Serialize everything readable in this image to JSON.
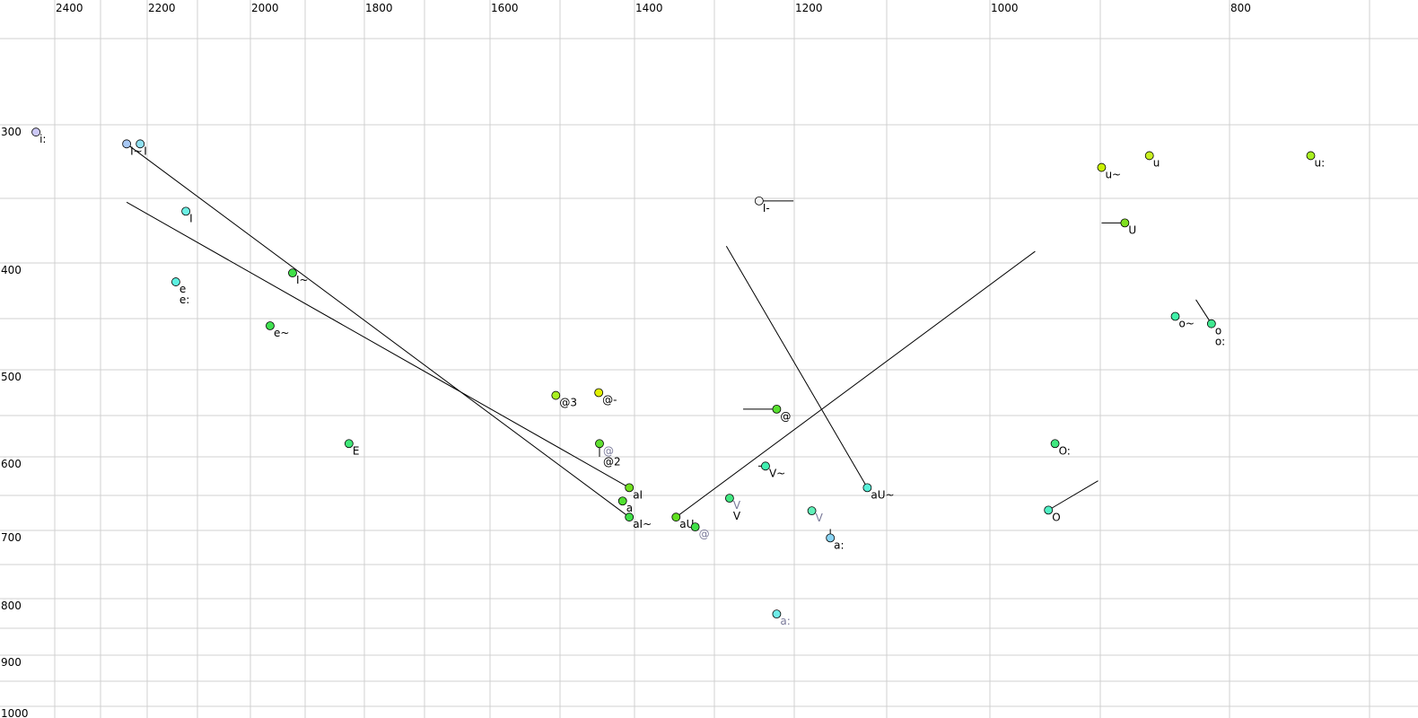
{
  "chart_data": {
    "type": "scatter",
    "title": "",
    "xlabel": "",
    "ylabel": "",
    "x_axis": {
      "reversed": true,
      "position": "top",
      "ticks": [
        2400,
        2200,
        2000,
        1800,
        1600,
        1400,
        1200,
        1000,
        800
      ],
      "grid_step": 100
    },
    "y_axis": {
      "reversed": true,
      "position": "left",
      "ticks": [
        300,
        400,
        500,
        600,
        700,
        800,
        900,
        1000
      ],
      "grid_step": 50
    },
    "grid": true,
    "colors": {
      "grid": "#d0d0d0",
      "muted_label": "#7a7a9a",
      "trajectory": "#000000"
    },
    "points": [
      {
        "labels": [
          "i:"
        ],
        "f2": 2441,
        "f1": 305,
        "color": "#ccc8f6"
      },
      {
        "labels": [
          "I~"
        ],
        "f2": 2244,
        "f1": 313,
        "color": "#a8c8f4"
      },
      {
        "labels": [
          "I"
        ],
        "f2": 2215,
        "f1": 313,
        "color": "#90e0f0"
      },
      {
        "labels": [
          "I"
        ],
        "f2": 2123,
        "f1": 360,
        "color": "#6cf0e4"
      },
      {
        "labels": [
          "e",
          "e:"
        ],
        "f2": 2143,
        "f1": 417,
        "color": "#5cf0e0"
      },
      {
        "labels": [
          "I~"
        ],
        "f2": 1923,
        "f1": 409,
        "color": "#40e048"
      },
      {
        "labels": [
          "e~"
        ],
        "f2": 1964,
        "f1": 457,
        "color": "#40e050"
      },
      {
        "labels": [
          "E"
        ],
        "f2": 1826,
        "f1": 584,
        "color": "#40e878"
      },
      {
        "labels": [
          "@3"
        ],
        "f2": 1506,
        "f1": 528,
        "color": "#a8f020"
      },
      {
        "labels": [
          "@-"
        ],
        "f2": 1448,
        "f1": 525,
        "color": "#e0f000"
      },
      {
        "labels": [
          "@",
          "@2"
        ],
        "muted": [
          true,
          false
        ],
        "f2": 1447,
        "f1": 584,
        "color": "#60e030"
      },
      {
        "labels": [
          "aI"
        ],
        "f2": 1407,
        "f1": 640,
        "color": "#70e020"
      },
      {
        "labels": [
          "a"
        ],
        "f2": 1416,
        "f1": 658,
        "color": "#50e030"
      },
      {
        "labels": [
          "aI~"
        ],
        "f2": 1407,
        "f1": 681,
        "color": "#40e048"
      },
      {
        "labels": [
          "aU"
        ],
        "f2": 1348,
        "f1": 681,
        "color": "#60e020"
      },
      {
        "labels": [
          "@"
        ],
        "muted": [
          true
        ],
        "f2": 1324,
        "f1": 695,
        "color": "#40e048"
      },
      {
        "labels": [
          "V",
          "V"
        ],
        "muted": [
          true,
          false
        ],
        "f2": 1281,
        "f1": 654,
        "color": "#40e880"
      },
      {
        "labels": [
          "V~"
        ],
        "f2": 1236,
        "f1": 612,
        "color": "#40f0b0"
      },
      {
        "labels": [
          "@"
        ],
        "f2": 1222,
        "f1": 543,
        "color": "#58e030"
      },
      {
        "labels": [
          "I-"
        ],
        "f2": 1244,
        "f1": 352,
        "color": "#f4f4f4"
      },
      {
        "labels": [
          "V"
        ],
        "muted": [
          true
        ],
        "f2": 1181,
        "f1": 672,
        "color": "#60f0b8"
      },
      {
        "labels": [
          "a:"
        ],
        "f2": 1161,
        "f1": 711,
        "color": "#88d4f4"
      },
      {
        "labels": [
          "a:"
        ],
        "muted": [
          true
        ],
        "f2": 1222,
        "f1": 826,
        "color": "#70ece8"
      },
      {
        "labels": [
          "aU~"
        ],
        "f2": 1121,
        "f1": 640,
        "color": "#58f0d8"
      },
      {
        "labels": [
          "O:"
        ],
        "f2": 941,
        "f1": 584,
        "color": "#40e880"
      },
      {
        "labels": [
          "O"
        ],
        "f2": 947,
        "f1": 671,
        "color": "#50f0c4"
      },
      {
        "labels": [
          "u~"
        ],
        "f2": 899,
        "f1": 329,
        "color": "#c8f000"
      },
      {
        "labels": [
          "u"
        ],
        "f2": 862,
        "f1": 321,
        "color": "#c8f020"
      },
      {
        "labels": [
          "U"
        ],
        "f2": 881,
        "f1": 369,
        "color": "#80e020"
      },
      {
        "labels": [
          "o~"
        ],
        "f2": 842,
        "f1": 448,
        "color": "#40f0a8"
      },
      {
        "labels": [
          "o",
          "o:"
        ],
        "f2": 814,
        "f1": 455,
        "color": "#40e890"
      },
      {
        "labels": [
          "u:"
        ],
        "f2": 742,
        "f1": 321,
        "color": "#a8f020"
      }
    ],
    "trajectories": [
      {
        "from": [
          2244,
          313
        ],
        "to": [
          1407,
          681
        ]
      },
      {
        "from": [
          2244,
          353
        ],
        "to": [
          1407,
          640
        ]
      },
      {
        "from": [
          1285,
          387
        ],
        "to": [
          1121,
          640
        ]
      },
      {
        "from": [
          959,
          391
        ],
        "to": [
          1348,
          681
        ]
      },
      {
        "from": [
          902,
          631
        ],
        "to": [
          947,
          671
        ]
      },
      {
        "from": [
          826,
          433
        ],
        "to": [
          814,
          455
        ]
      },
      {
        "from": [
          899,
          369
        ],
        "to": [
          881,
          369
        ]
      },
      {
        "from": [
          1264,
          543
        ],
        "to": [
          1222,
          543
        ]
      },
      {
        "from": [
          1244,
          352
        ],
        "to": [
          1201,
          352
        ]
      },
      {
        "from": [
          1447,
          584
        ],
        "to": [
          1447,
          600
        ]
      },
      {
        "from": [
          1161,
          698
        ],
        "to": [
          1161,
          711
        ]
      },
      {
        "from": [
          1245,
          612
        ],
        "to": [
          1236,
          612
        ]
      }
    ]
  }
}
